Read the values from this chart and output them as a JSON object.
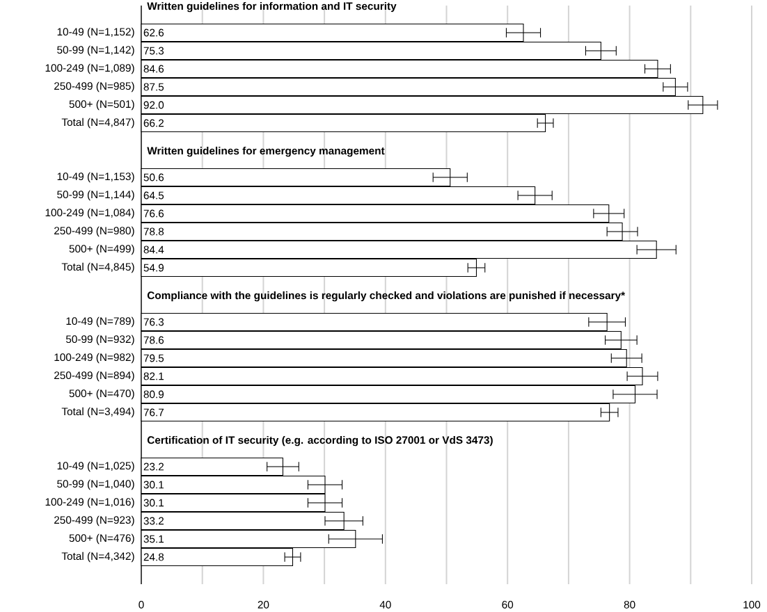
{
  "chart_data": [
    {
      "type": "bar",
      "orientation": "horizontal",
      "title": "Written guidelines for information and IT security",
      "categories": [
        "10-49 (N=1,152)",
        "50-99 (N=1,142)",
        "100-249 (N=1,089)",
        "250-499 (N=985)",
        "500+ (N=501)",
        "Total (N=4,847)"
      ],
      "values": [
        62.6,
        75.3,
        84.6,
        87.5,
        92.0,
        66.2
      ],
      "value_labels": [
        "62.6",
        "75.3",
        "84.6",
        "87.5",
        "92.0",
        "66.2"
      ],
      "errors": [
        2.8,
        2.5,
        2.1,
        2.0,
        2.4,
        1.3
      ],
      "color": "#ffffff",
      "xlim": [
        0,
        100
      ],
      "xticks": [
        0,
        {
          "value": 10,
          "label": null
        },
        20,
        {
          "value": 30,
          "label": null
        },
        40,
        {
          "value": 50,
          "label": null
        },
        60,
        {
          "value": 70,
          "label": null
        },
        80,
        {
          "value": 90,
          "label": null
        },
        100
      ],
      "grid": "x",
      "tick_labels": "y"
    },
    {
      "type": "bar",
      "orientation": "horizontal",
      "title": "Written guidelines for emergency management",
      "categories": [
        "10-49 (N=1,153)",
        "50-99 (N=1,144)",
        "100-249 (N=1,084)",
        "250-499 (N=980)",
        "500+ (N=499)",
        "Total (N=4,845)"
      ],
      "values": [
        50.6,
        64.5,
        76.6,
        78.8,
        84.4,
        54.9
      ],
      "value_labels": [
        "50.6",
        "64.5",
        "76.6",
        "78.8",
        "84.4",
        "54.9"
      ],
      "errors": [
        2.8,
        2.8,
        2.5,
        2.5,
        3.2,
        1.4
      ],
      "color": "#ffffff",
      "xlim": [
        0,
        100
      ],
      "xticks": [
        0,
        {
          "value": 10,
          "label": null
        },
        20,
        {
          "value": 30,
          "label": null
        },
        40,
        {
          "value": 50,
          "label": null
        },
        60,
        {
          "value": 70,
          "label": null
        },
        80,
        {
          "value": 90,
          "label": null
        },
        100
      ],
      "grid": "x",
      "tick_labels": "y"
    },
    {
      "type": "bar",
      "orientation": "horizontal",
      "title": "Compliance with the guidelines is regularly checked and violations are punished if necessary*",
      "categories": [
        "10-49 (N=789)",
        "50-99 (N=932)",
        "100-249 (N=982)",
        "250-499 (N=894)",
        "500+ (N=470)",
        "Total (N=3,494)"
      ],
      "values": [
        76.3,
        78.6,
        79.5,
        82.1,
        80.9,
        76.7
      ],
      "value_labels": [
        "76.3",
        "78.6",
        "79.5",
        "82.1",
        "80.9",
        "76.7"
      ],
      "errors": [
        3.0,
        2.6,
        2.5,
        2.5,
        3.6,
        1.4
      ],
      "color": "#ffffff",
      "xlim": [
        0,
        100
      ],
      "xticks": [
        0,
        {
          "value": 10,
          "label": null
        },
        20,
        {
          "value": 30,
          "label": null
        },
        40,
        {
          "value": 50,
          "label": null
        },
        60,
        {
          "value": 70,
          "label": null
        },
        80,
        {
          "value": 90,
          "label": null
        },
        100
      ],
      "grid": "x",
      "tick_labels": "y"
    },
    {
      "type": "bar",
      "orientation": "horizontal",
      "title": "Certification of IT security (e.g. according to ISO 27001 or VdS 3473)",
      "categories": [
        "10-49 (N=1,025)",
        "50-99 (N=1,040)",
        "100-249 (N=1,016)",
        "250-499 (N=923)",
        "500+ (N=476)",
        "Total (N=4,342)"
      ],
      "values": [
        23.2,
        30.1,
        30.1,
        33.2,
        35.1,
        24.8
      ],
      "value_labels": [
        "23.2",
        "30.1",
        "30.1",
        "33.2",
        "35.1",
        "24.8"
      ],
      "errors": [
        2.6,
        2.8,
        2.8,
        3.1,
        4.4,
        1.3
      ],
      "color": "#ffffff",
      "xlim": [
        0,
        100
      ],
      "xticks": [
        0,
        {
          "value": 10,
          "label": null
        },
        20,
        {
          "value": 30,
          "label": null
        },
        40,
        {
          "value": 50,
          "label": null
        },
        60,
        {
          "value": 70,
          "label": null
        },
        80,
        {
          "value": 90,
          "label": null
        },
        100
      ],
      "grid": "x"
    }
  ]
}
